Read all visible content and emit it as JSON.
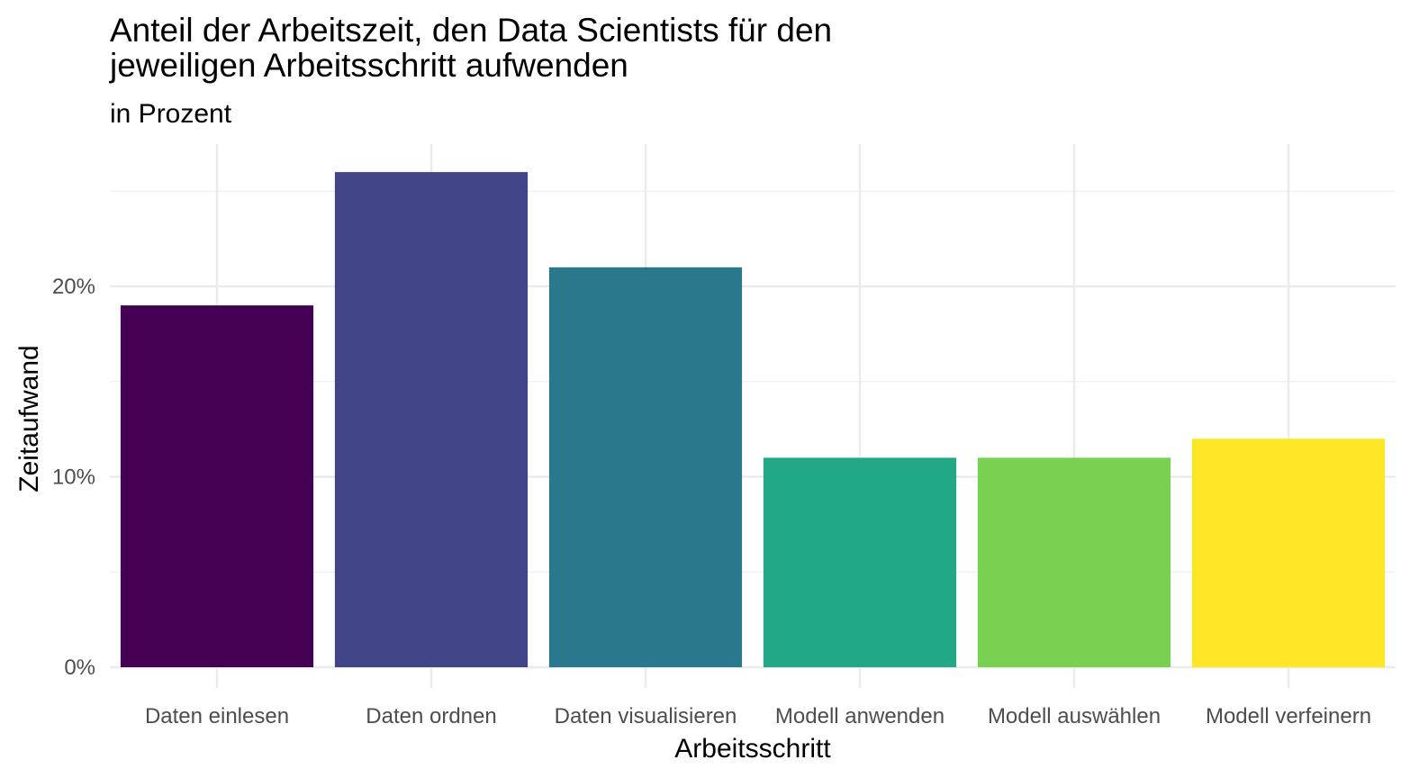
{
  "chart_data": {
    "type": "bar",
    "title": "Anteil der Arbeitszeit, den Data Scientists für den\njeweiligen Arbeitsschritt aufwenden",
    "subtitle": "in Prozent",
    "xlabel": "Arbeitsschritt",
    "ylabel": "Zeitaufwand",
    "categories": [
      "Daten einlesen",
      "Daten ordnen",
      "Daten visualisieren",
      "Modell anwenden",
      "Modell auswählen",
      "Modell verfeinern"
    ],
    "values": [
      19,
      26,
      21,
      11,
      11,
      12
    ],
    "colors": [
      "#440154",
      "#414487",
      "#2a788e",
      "#22a884",
      "#7ad151",
      "#fde725"
    ],
    "ylim": [
      0,
      27
    ],
    "yticks": [
      0,
      10,
      20
    ],
    "ytick_labels": [
      "0%",
      "10%",
      "20%"
    ],
    "grid": true,
    "legend": "none"
  }
}
